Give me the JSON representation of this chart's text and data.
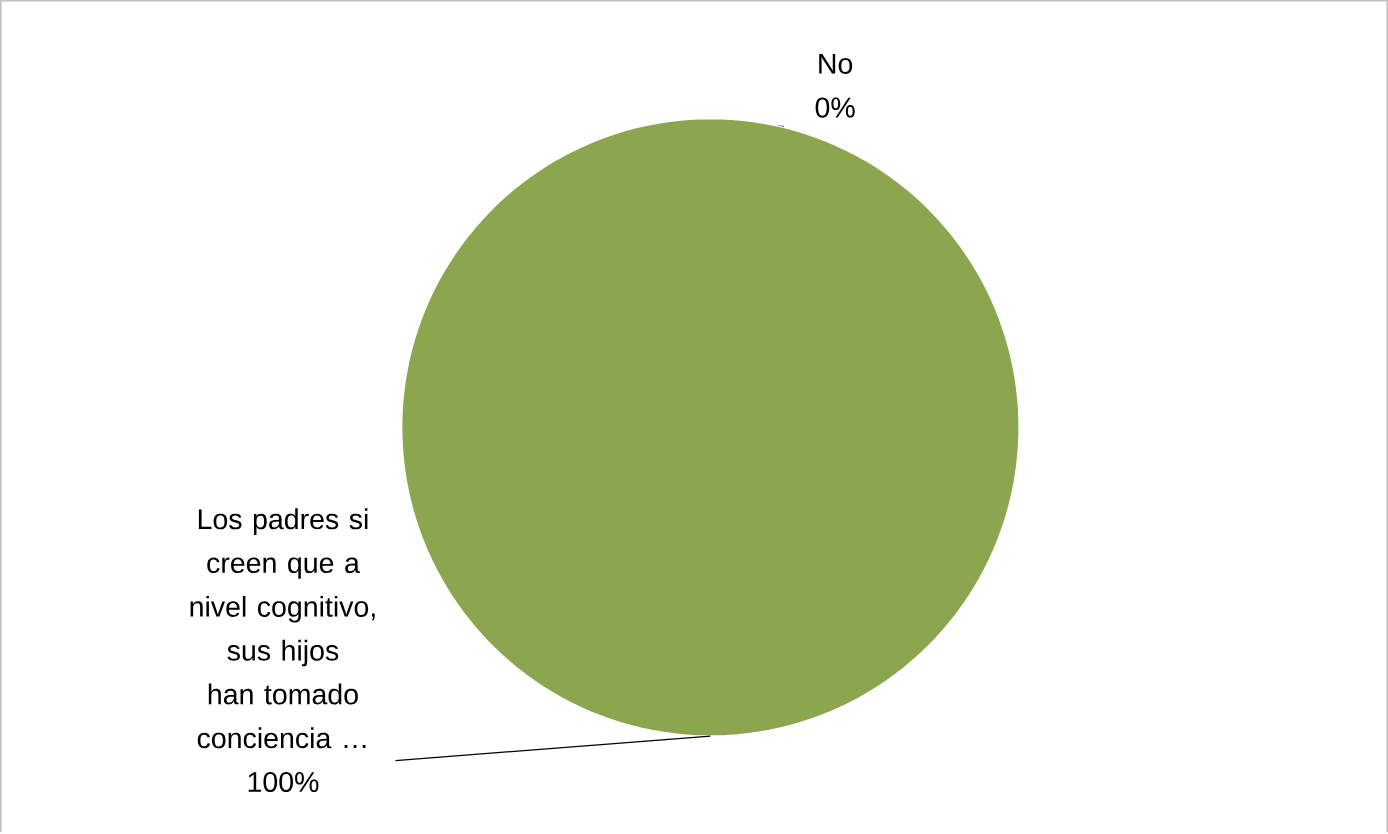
{
  "chart_data": {
    "type": "pie",
    "categories": [
      "No",
      "Los padres si creen que a nivel cognitivo, sus hijos han tomado conciencia …"
    ],
    "values": [
      0,
      100
    ],
    "colors": [
      "#4f81bd",
      "#8ba64e"
    ],
    "value_labels": [
      "0%",
      "100%"
    ]
  }
}
